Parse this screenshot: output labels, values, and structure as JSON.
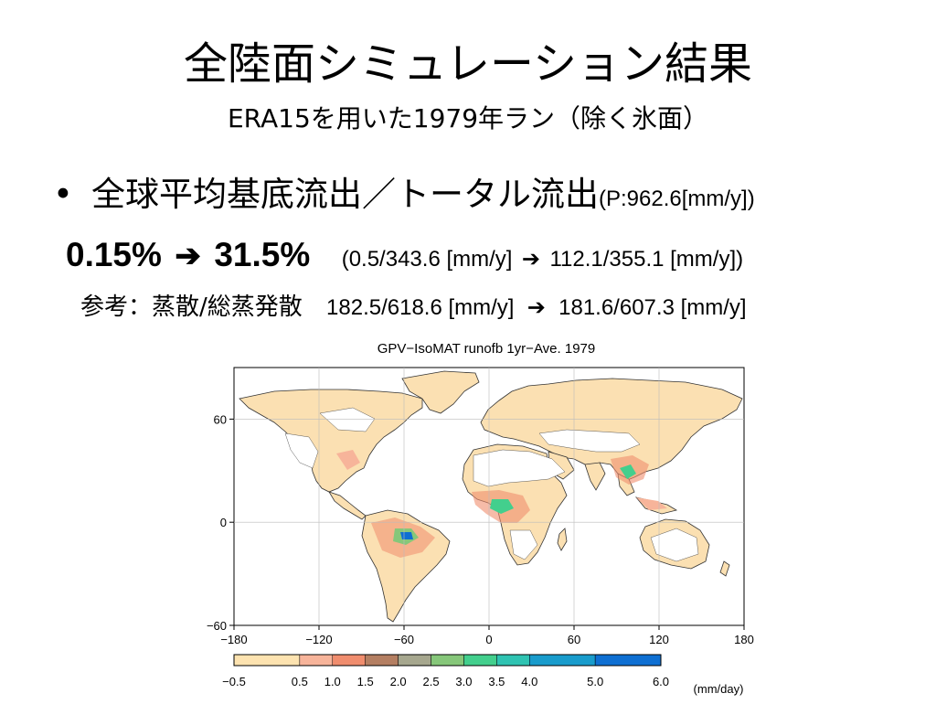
{
  "slide": {
    "title": "全陸面シミュレーション結果",
    "subtitle": "ERA15を用いた1979年ラン（除く氷面）",
    "bullet": {
      "marker": "•",
      "text": "全球平均基底流出／トータル流出",
      "param": "(P:962.6[mm/y])"
    },
    "ratio": {
      "from": "0.15%",
      "arrow": "➔",
      "to": "31.5%",
      "detail_from": "(0.5/343.6 [mm/y]",
      "detail_arrow": "➔",
      "detail_to": "112.1/355.1 [mm/y])"
    },
    "reference": {
      "label": "参考：蒸散/総蒸発散",
      "from": "182.5/618.6 [mm/y]",
      "arrow": "➔",
      "to": "181.6/607.3 [mm/y]"
    }
  },
  "map": {
    "title": "GPV−IsoMAT runofb 1yr−Ave. 1979",
    "lon_ticks": [
      "−180",
      "−120",
      "−60",
      "0",
      "60",
      "120",
      "180"
    ],
    "lat_ticks": [
      "60",
      "0",
      "−60"
    ],
    "colorbar": {
      "unit": "(mm/day)",
      "labels": [
        "−0.5",
        "0.5",
        "1.0",
        "1.5",
        "2.0",
        "2.5",
        "3.0",
        "3.5",
        "4.0",
        "5.0",
        "6.0"
      ],
      "colors": [
        "#fde3b0",
        "#f7b49a",
        "#f08d6e",
        "#b47f62",
        "#a6a78e",
        "#86c77a",
        "#43cf8d",
        "#2fc3b2",
        "#199ccc",
        "#0e6fd2"
      ]
    },
    "colors": {
      "land": "#fbe0b2",
      "land_dry": "#ffffff",
      "coast": "#333333",
      "grid": "#bbbbbb"
    }
  }
}
